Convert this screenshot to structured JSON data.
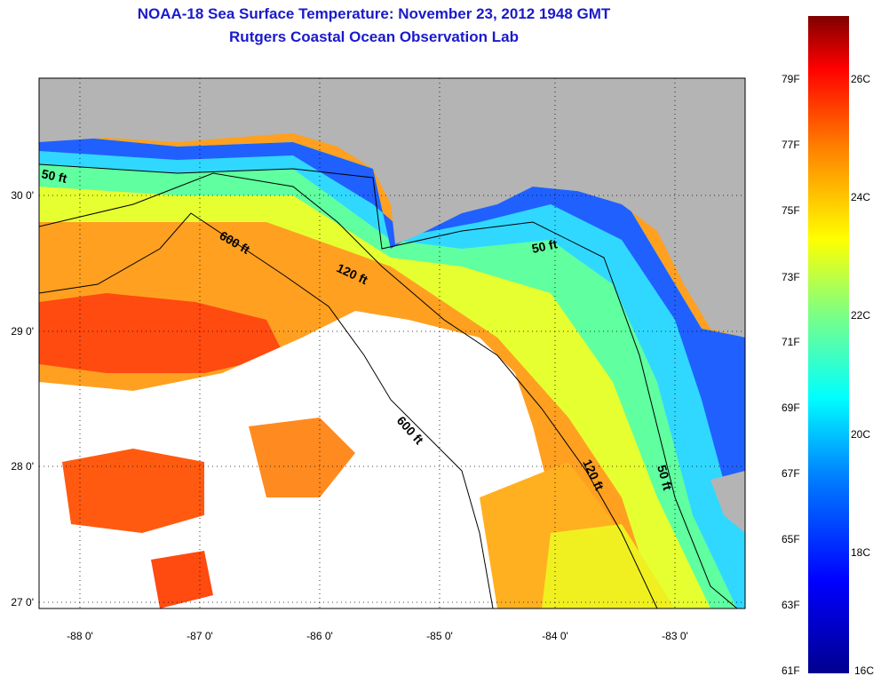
{
  "title": {
    "line1": "NOAA-18 Sea Surface Temperature:  November 23, 2012 1948 GMT",
    "line2": "Rutgers Coastal Ocean Observation Lab"
  },
  "map": {
    "lon_ticks": [
      "-88 0'",
      "-87 0'",
      "-86 0'",
      "-85 0'",
      "-84 0'",
      "-83 0'"
    ],
    "lat_ticks": [
      "30 0'",
      "29 0'",
      "28 0'",
      "27 0'"
    ],
    "contour_labels": [
      "50 ft",
      "600 ft",
      "120 ft",
      "50 ft",
      "600 ft",
      "120 ft",
      "50 ft"
    ],
    "colors": {
      "land": "#b4b4b4",
      "cloud": "#ffffff",
      "contour": "#000000"
    }
  },
  "colorbar": {
    "fahrenheit": [
      "79F",
      "77F",
      "75F",
      "73F",
      "71F",
      "69F",
      "67F",
      "65F",
      "63F",
      "61F"
    ],
    "celsius": [
      "26C",
      "24C",
      "22C",
      "20C",
      "18C",
      "16C"
    ]
  }
}
